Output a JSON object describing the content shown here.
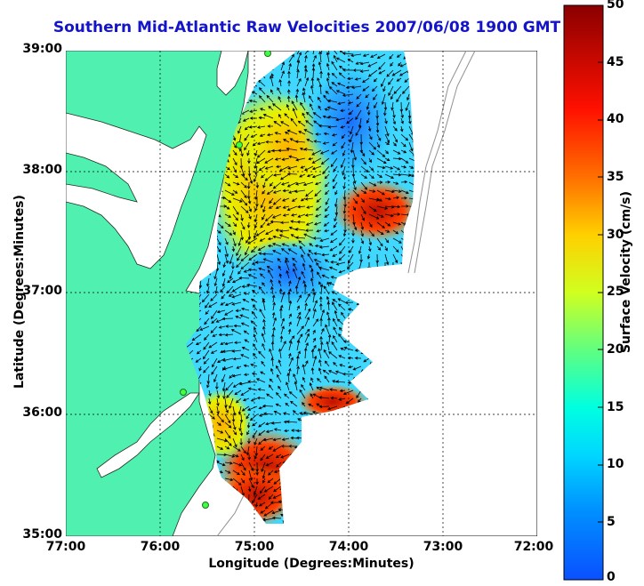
{
  "title": "Southern Mid-Atlantic Raw Velocities 2007/06/08 1900 GMT",
  "colors": {
    "title": "#1414c8",
    "land": "#50f0b0",
    "grid": "#000000",
    "colormap": [
      "#0a50ff",
      "#00b4ff",
      "#00ffff",
      "#55ff80",
      "#d0ff20",
      "#ffd000",
      "#ff7000",
      "#ff0000",
      "#8a0000"
    ]
  },
  "axes": {
    "xlabel": "Longitude (Degrees:Minutes)",
    "ylabel": "Latitude (Degrees:Minutes)",
    "xticks": [
      "77:00",
      "76:00",
      "75:00",
      "74:00",
      "73:00",
      "72:00"
    ],
    "yticks": [
      "39:00",
      "38:00",
      "37:00",
      "36:00",
      "35:00"
    ]
  },
  "colorbar": {
    "label": "Surface Velocity (cm/s)",
    "ticks": [
      "50",
      "45",
      "40",
      "35",
      "30",
      "25",
      "20",
      "15",
      "10",
      "5",
      "0"
    ],
    "range": [
      0,
      50
    ]
  }
}
